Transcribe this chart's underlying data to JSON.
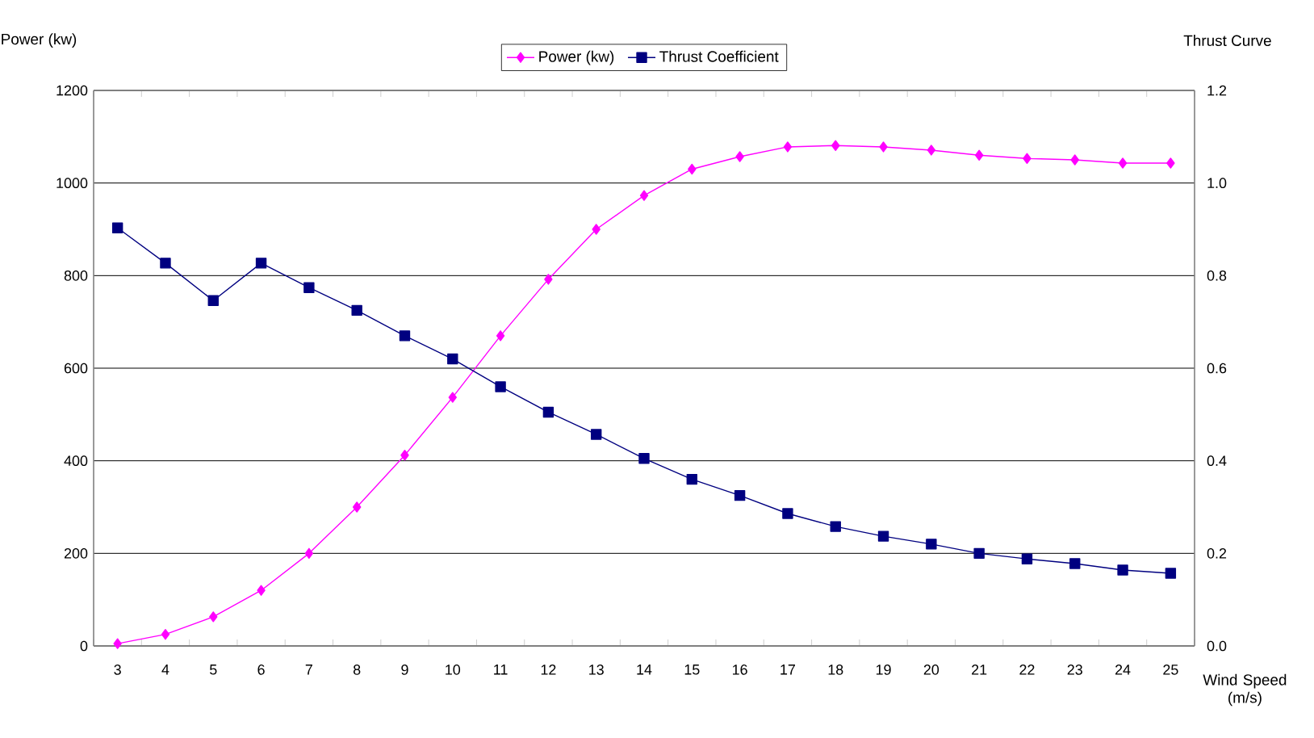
{
  "chart_data": {
    "type": "line",
    "xlabel": "Wind Speed (m/s)",
    "ylabel": "Power (kw)",
    "y2label": "Thrust Curve",
    "categories": [
      "3",
      "4",
      "5",
      "6",
      "7",
      "8",
      "9",
      "10",
      "11",
      "12",
      "13",
      "14",
      "15",
      "16",
      "17",
      "18",
      "19",
      "20",
      "21",
      "22",
      "23",
      "24",
      "25"
    ],
    "series": [
      {
        "name": "Power (kw)",
        "color": "#ff00ff",
        "marker": "diamond",
        "values": [
          5,
          25,
          63,
          120,
          200,
          300,
          412,
          537,
          670,
          792,
          900,
          973,
          1030,
          1057,
          1078,
          1081,
          1078,
          1071,
          1060,
          1053,
          1050,
          1043,
          1043
        ]
      },
      {
        "name": "Thrust Coefficient",
        "color": "#000080",
        "marker": "square",
        "axis": "y2",
        "values": [
          0.903,
          0.827,
          0.746,
          0.827,
          0.774,
          0.725,
          0.67,
          0.62,
          0.56,
          0.505,
          0.457,
          0.405,
          0.36,
          0.325,
          0.286,
          0.258,
          0.237,
          0.22,
          0.2,
          0.188,
          0.178,
          0.164,
          0.157
        ]
      }
    ],
    "ylim": [
      0,
      1200
    ],
    "yticks": [
      0,
      200,
      400,
      600,
      800,
      1000,
      1200
    ],
    "y2lim": [
      0,
      1.2
    ],
    "y2ticks": [
      {
        "value": 0,
        "label": "0.0"
      },
      {
        "value": 0.2,
        "label": "0.2"
      },
      {
        "value": 0.4,
        "label": "0.4"
      },
      {
        "value": 0.6,
        "label": "0.6"
      },
      {
        "value": 0.8,
        "label": "0.8"
      },
      {
        "value": 1,
        "label": "1.0"
      },
      {
        "value": 1.2,
        "label": "1.2"
      }
    ],
    "grid": "y",
    "legend": "top",
    "line_style": "solid"
  }
}
